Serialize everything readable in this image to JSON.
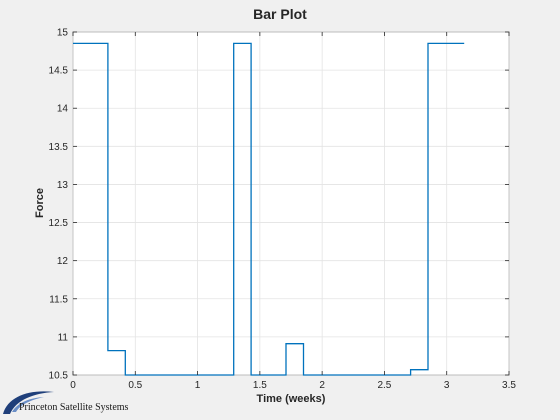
{
  "chart_data": {
    "type": "line",
    "title": "Bar Plot",
    "xlabel": "Time (weeks)",
    "ylabel": "Force",
    "xlim": [
      0,
      3.5
    ],
    "ylim": [
      10.5,
      15
    ],
    "xticks": [
      0,
      0.5,
      1,
      1.5,
      2,
      2.5,
      3,
      3.5
    ],
    "xtick_labels": [
      "0",
      "0.5",
      "1",
      "1.5",
      "2",
      "2.5",
      "3",
      "3.5"
    ],
    "yticks": [
      10.5,
      11,
      11.5,
      12,
      12.5,
      13,
      13.5,
      14,
      14.5,
      15
    ],
    "ytick_labels": [
      "10.5",
      "11",
      "11.5",
      "12",
      "12.5",
      "13",
      "13.5",
      "14",
      "14.5",
      "15"
    ],
    "grid": true,
    "series": [
      {
        "color": "#0072bd",
        "x": [
          0,
          0.28,
          0.28,
          0.42,
          0.42,
          1.29,
          1.29,
          1.43,
          1.43,
          1.71,
          1.71,
          1.85,
          1.85,
          2.71,
          2.71,
          2.85,
          2.85,
          3.14
        ],
        "y": [
          14.85,
          14.85,
          10.82,
          10.82,
          10.5,
          10.5,
          14.85,
          14.85,
          10.5,
          10.5,
          10.91,
          10.91,
          10.5,
          10.5,
          10.57,
          10.57,
          14.85,
          14.85
        ]
      }
    ]
  },
  "logo": {
    "text": "Princeton Satellite Systems"
  }
}
